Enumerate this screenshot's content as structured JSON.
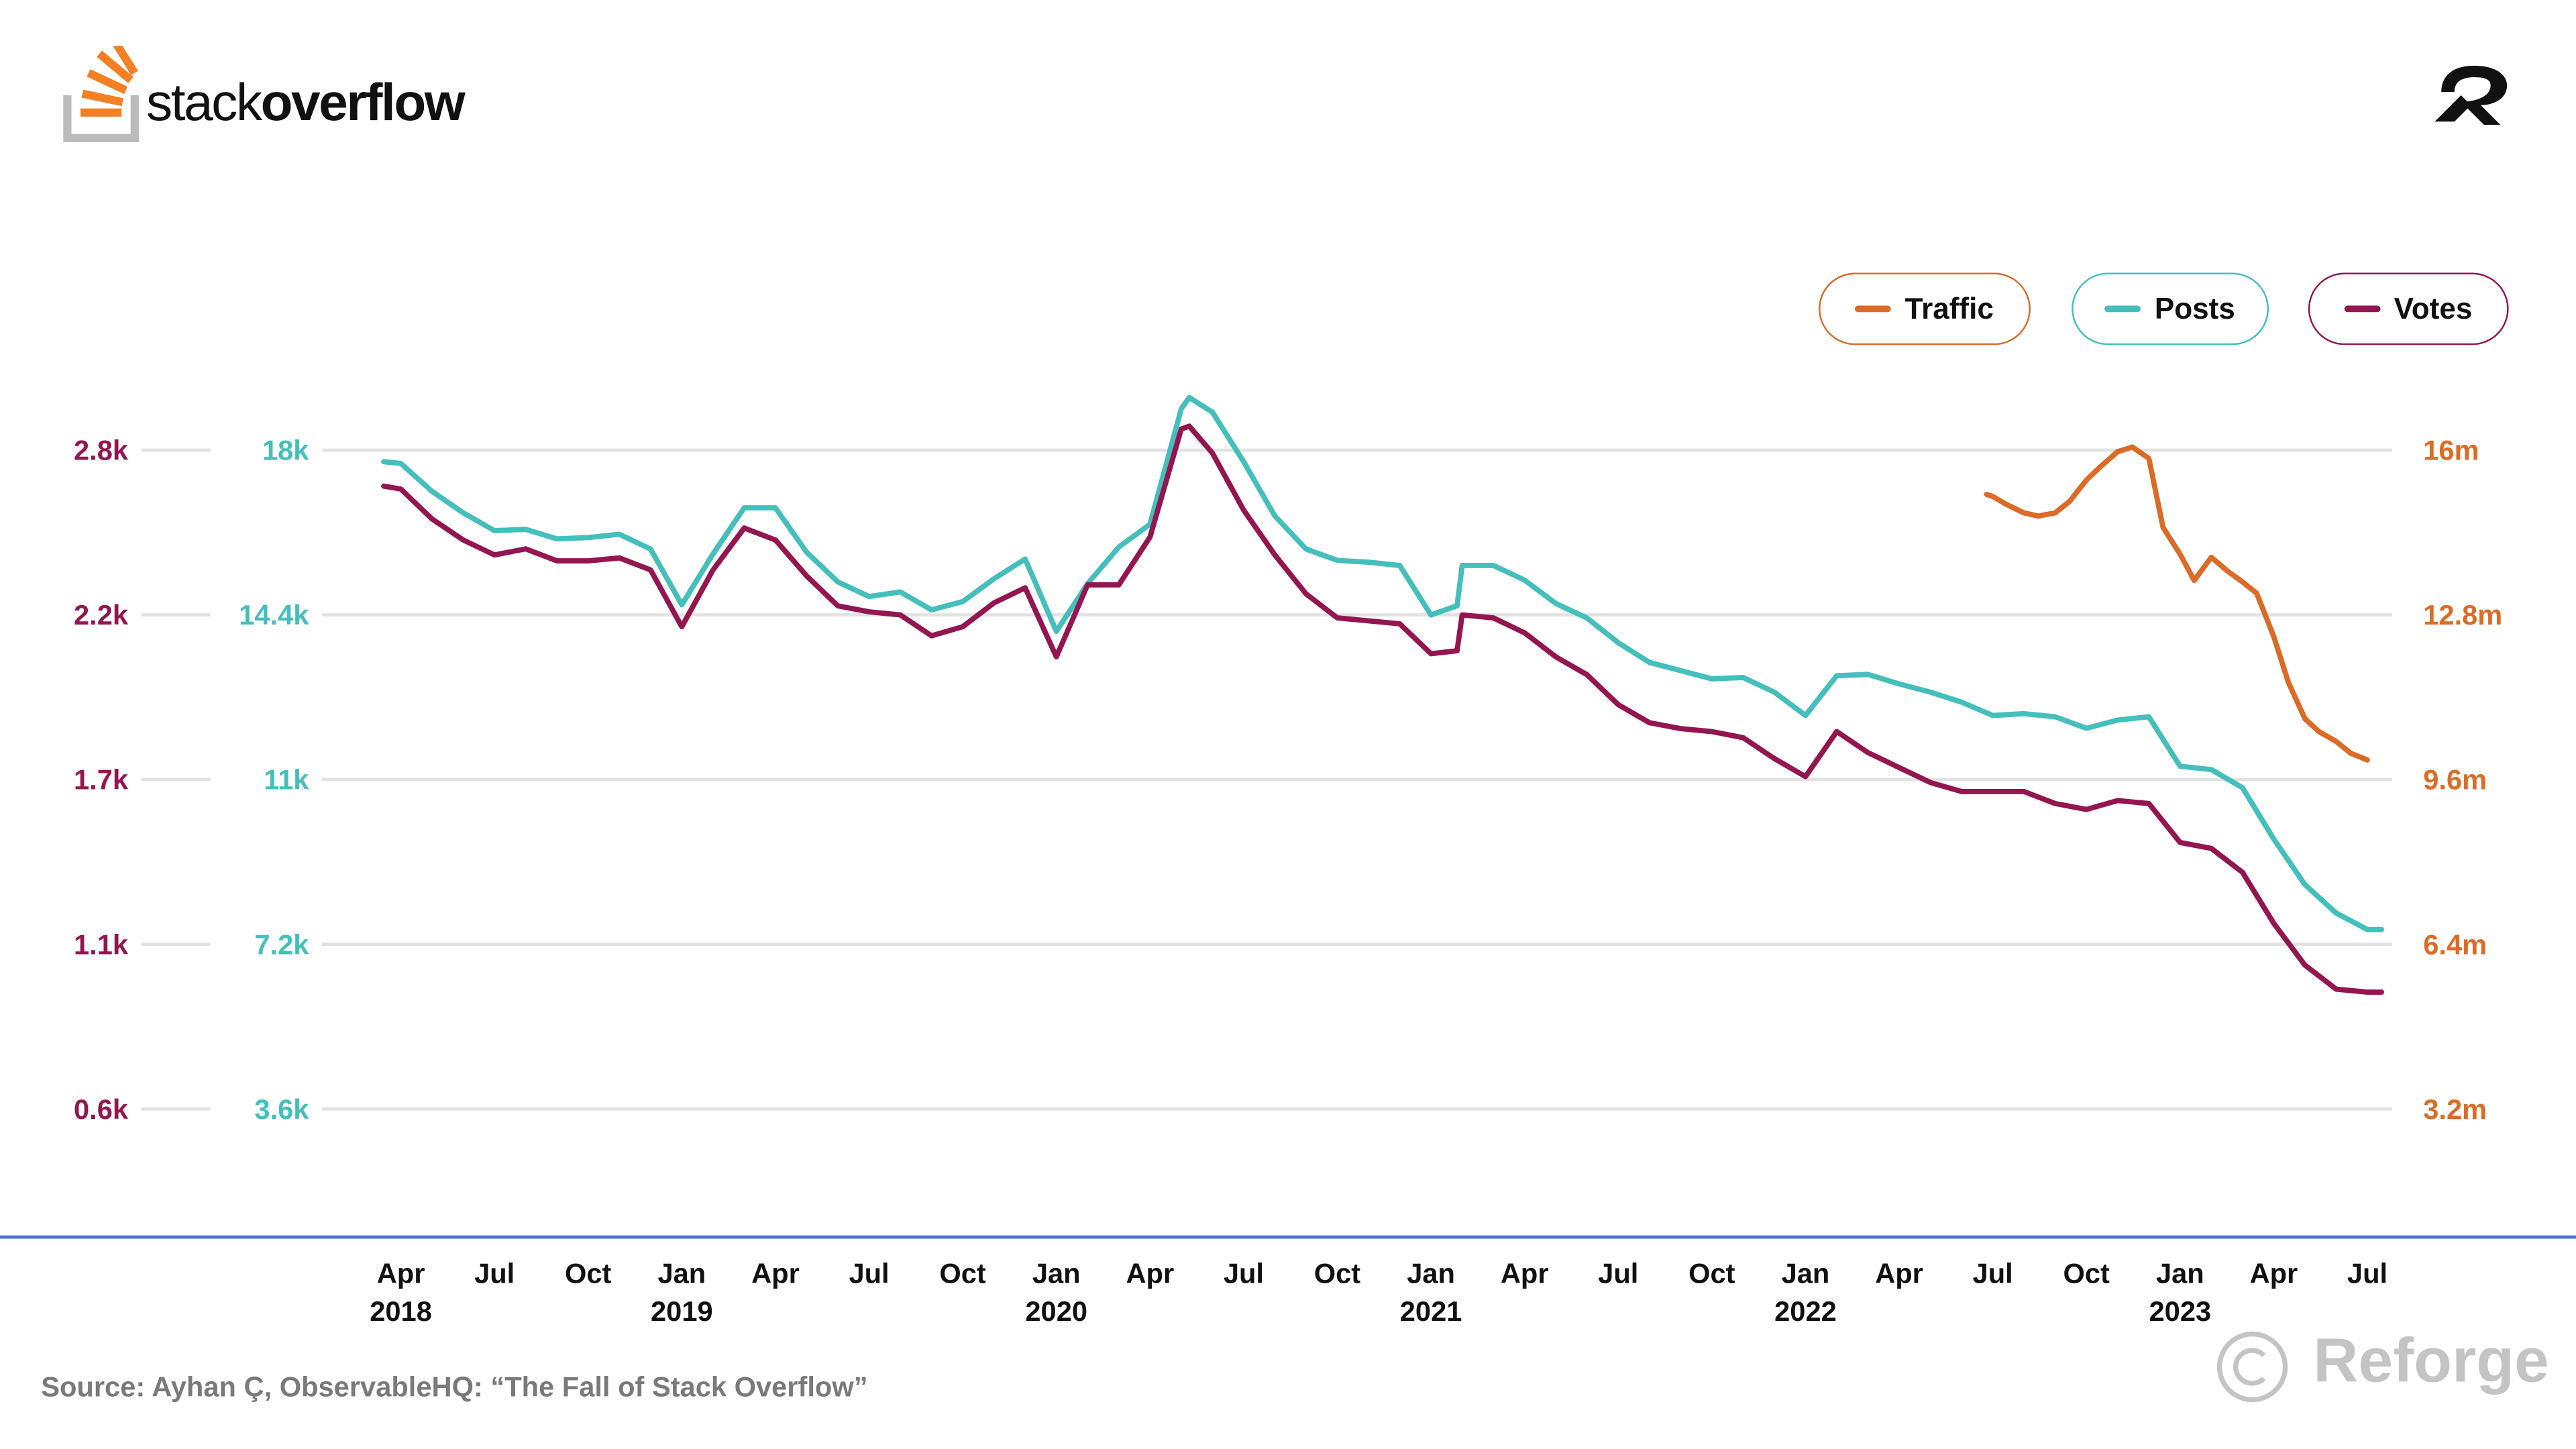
{
  "brand": {
    "logo_word_light": "stack",
    "logo_word_bold": "overflow",
    "partner_logo": "Reforge",
    "watermark": "Reforge"
  },
  "source": "Source: Ayhan Ç, ObservableHQ: “The Fall of Stack Overflow”",
  "legend": [
    {
      "label": "Traffic",
      "color": "#db6b27"
    },
    {
      "label": "Posts",
      "color": "#44bfbb"
    },
    {
      "label": "Votes",
      "color": "#941650"
    }
  ],
  "chart_data": {
    "type": "line",
    "grid": true,
    "legend_position": "top-right",
    "x_ticks": [
      {
        "month": "Apr",
        "year": "2018"
      },
      {
        "month": "Jul",
        "year": ""
      },
      {
        "month": "Oct",
        "year": ""
      },
      {
        "month": "Jan",
        "year": "2019"
      },
      {
        "month": "Apr",
        "year": ""
      },
      {
        "month": "Jul",
        "year": ""
      },
      {
        "month": "Oct",
        "year": ""
      },
      {
        "month": "Jan",
        "year": "2020"
      },
      {
        "month": "Apr",
        "year": ""
      },
      {
        "month": "Jul",
        "year": ""
      },
      {
        "month": "Oct",
        "year": ""
      },
      {
        "month": "Jan",
        "year": "2021"
      },
      {
        "month": "Apr",
        "year": ""
      },
      {
        "month": "Jul",
        "year": ""
      },
      {
        "month": "Oct",
        "year": ""
      },
      {
        "month": "Jan",
        "year": "2022"
      },
      {
        "month": "Apr",
        "year": ""
      },
      {
        "month": "Jul",
        "year": ""
      },
      {
        "month": "Oct",
        "year": ""
      },
      {
        "month": "Jan",
        "year": "2023"
      },
      {
        "month": "Apr",
        "year": ""
      },
      {
        "month": "Jul",
        "year": ""
      }
    ],
    "axes": {
      "votes": {
        "side": "left-outer",
        "ylim": [
          0.6,
          2.8
        ],
        "ticks": [
          "0.6k",
          "1.1k",
          "1.7k",
          "2.2k",
          "2.8k"
        ],
        "color": "#941650"
      },
      "posts": {
        "side": "left-inner",
        "ylim": [
          3.6,
          18
        ],
        "ticks": [
          "3.6k",
          "7.2k",
          "11k",
          "14.4k",
          "18k"
        ],
        "color": "#44bfbb"
      },
      "traffic": {
        "side": "right",
        "ylim": [
          3.2,
          16
        ],
        "ticks": [
          "3.2m",
          "6.4m",
          "9.6m",
          "12.8m",
          "16m"
        ],
        "color": "#db6b27"
      }
    },
    "x": [
      "2018-03-15",
      "2018-04-01",
      "2018-05-01",
      "2018-06-01",
      "2018-07-01",
      "2018-08-01",
      "2018-09-01",
      "2018-10-01",
      "2018-11-01",
      "2018-12-01",
      "2019-01-01",
      "2019-02-01",
      "2019-03-01",
      "2019-04-01",
      "2019-05-01",
      "2019-06-01",
      "2019-07-01",
      "2019-08-01",
      "2019-09-01",
      "2019-10-01",
      "2019-11-01",
      "2019-12-01",
      "2020-01-01",
      "2020-02-01",
      "2020-03-01",
      "2020-04-01",
      "2020-05-01",
      "2020-05-09",
      "2020-06-01",
      "2020-07-01",
      "2020-08-01",
      "2020-09-01",
      "2020-10-01",
      "2020-11-01",
      "2020-12-01",
      "2021-01-01",
      "2021-01-27",
      "2021-02-01",
      "2021-03-01",
      "2021-04-01",
      "2021-05-01",
      "2021-06-01",
      "2021-07-01",
      "2021-08-01",
      "2021-09-01",
      "2021-10-01",
      "2021-11-01",
      "2021-12-01",
      "2022-01-01",
      "2022-02-01",
      "2022-03-01",
      "2022-04-01",
      "2022-05-01",
      "2022-06-01",
      "2022-07-01",
      "2022-08-01",
      "2022-09-01",
      "2022-10-01",
      "2022-11-01",
      "2022-12-01",
      "2023-01-01",
      "2023-02-01",
      "2023-03-01",
      "2023-04-01",
      "2023-05-01",
      "2023-06-01",
      "2023-07-01",
      "2023-07-15"
    ],
    "series": [
      {
        "name": "Posts",
        "axis": "posts",
        "unit": "k",
        "color": "#44bfbb",
        "y": [
          17.75,
          17.71,
          17.1,
          16.63,
          16.24,
          16.27,
          16.06,
          16.09,
          16.16,
          15.84,
          14.62,
          15.73,
          16.74,
          16.74,
          15.77,
          15.12,
          14.8,
          14.9,
          14.51,
          14.69,
          15.19,
          15.62,
          14.04,
          15.08,
          15.88,
          16.38,
          18.9,
          19.15,
          18.83,
          17.75,
          16.56,
          15.84,
          15.59,
          15.55,
          15.48,
          14.4,
          14.6,
          15.48,
          15.48,
          15.16,
          14.65,
          14.33,
          13.79,
          13.36,
          13.18,
          13.0,
          13.03,
          12.71,
          12.2,
          13.07,
          13.1,
          12.89,
          12.71,
          12.49,
          12.2,
          12.24,
          12.17,
          11.92,
          12.1,
          12.17,
          11.09,
          11.02,
          10.62,
          9.5,
          8.5,
          7.88,
          7.52,
          7.52
        ]
      },
      {
        "name": "Votes",
        "axis": "votes",
        "unit": "k",
        "color": "#941650",
        "y": [
          2.68,
          2.67,
          2.57,
          2.5,
          2.45,
          2.47,
          2.43,
          2.43,
          2.44,
          2.4,
          2.21,
          2.4,
          2.54,
          2.5,
          2.38,
          2.28,
          2.26,
          2.25,
          2.18,
          2.21,
          2.29,
          2.34,
          2.11,
          2.35,
          2.35,
          2.51,
          2.87,
          2.88,
          2.79,
          2.6,
          2.45,
          2.32,
          2.24,
          2.23,
          2.22,
          2.12,
          2.13,
          2.25,
          2.24,
          2.19,
          2.11,
          2.05,
          1.95,
          1.89,
          1.87,
          1.86,
          1.84,
          1.77,
          1.71,
          1.86,
          1.79,
          1.74,
          1.69,
          1.66,
          1.66,
          1.66,
          1.62,
          1.6,
          1.63,
          1.62,
          1.49,
          1.47,
          1.39,
          1.22,
          1.08,
          1.0,
          0.99,
          0.99
        ]
      },
      {
        "name": "Traffic",
        "axis": "traffic",
        "unit": "m",
        "color": "#db6b27",
        "x": [
          "2022-06-25",
          "2022-07-01",
          "2022-07-15",
          "2022-08-01",
          "2022-08-15",
          "2022-09-01",
          "2022-09-15",
          "2022-10-01",
          "2022-10-15",
          "2022-11-01",
          "2022-11-15",
          "2022-12-01",
          "2022-12-15",
          "2023-01-01",
          "2023-01-15",
          "2023-02-01",
          "2023-02-15",
          "2023-03-01",
          "2023-03-15",
          "2023-04-01",
          "2023-04-15",
          "2023-05-01",
          "2023-05-15",
          "2023-06-01",
          "2023-06-15",
          "2023-07-01"
        ],
        "y": [
          15.14,
          15.1,
          14.94,
          14.78,
          14.72,
          14.78,
          15.01,
          15.42,
          15.68,
          15.97,
          16.06,
          15.84,
          14.5,
          13.98,
          13.47,
          13.92,
          13.66,
          13.44,
          13.22,
          12.38,
          11.49,
          10.78,
          10.53,
          10.34,
          10.11,
          9.98
        ]
      }
    ]
  }
}
